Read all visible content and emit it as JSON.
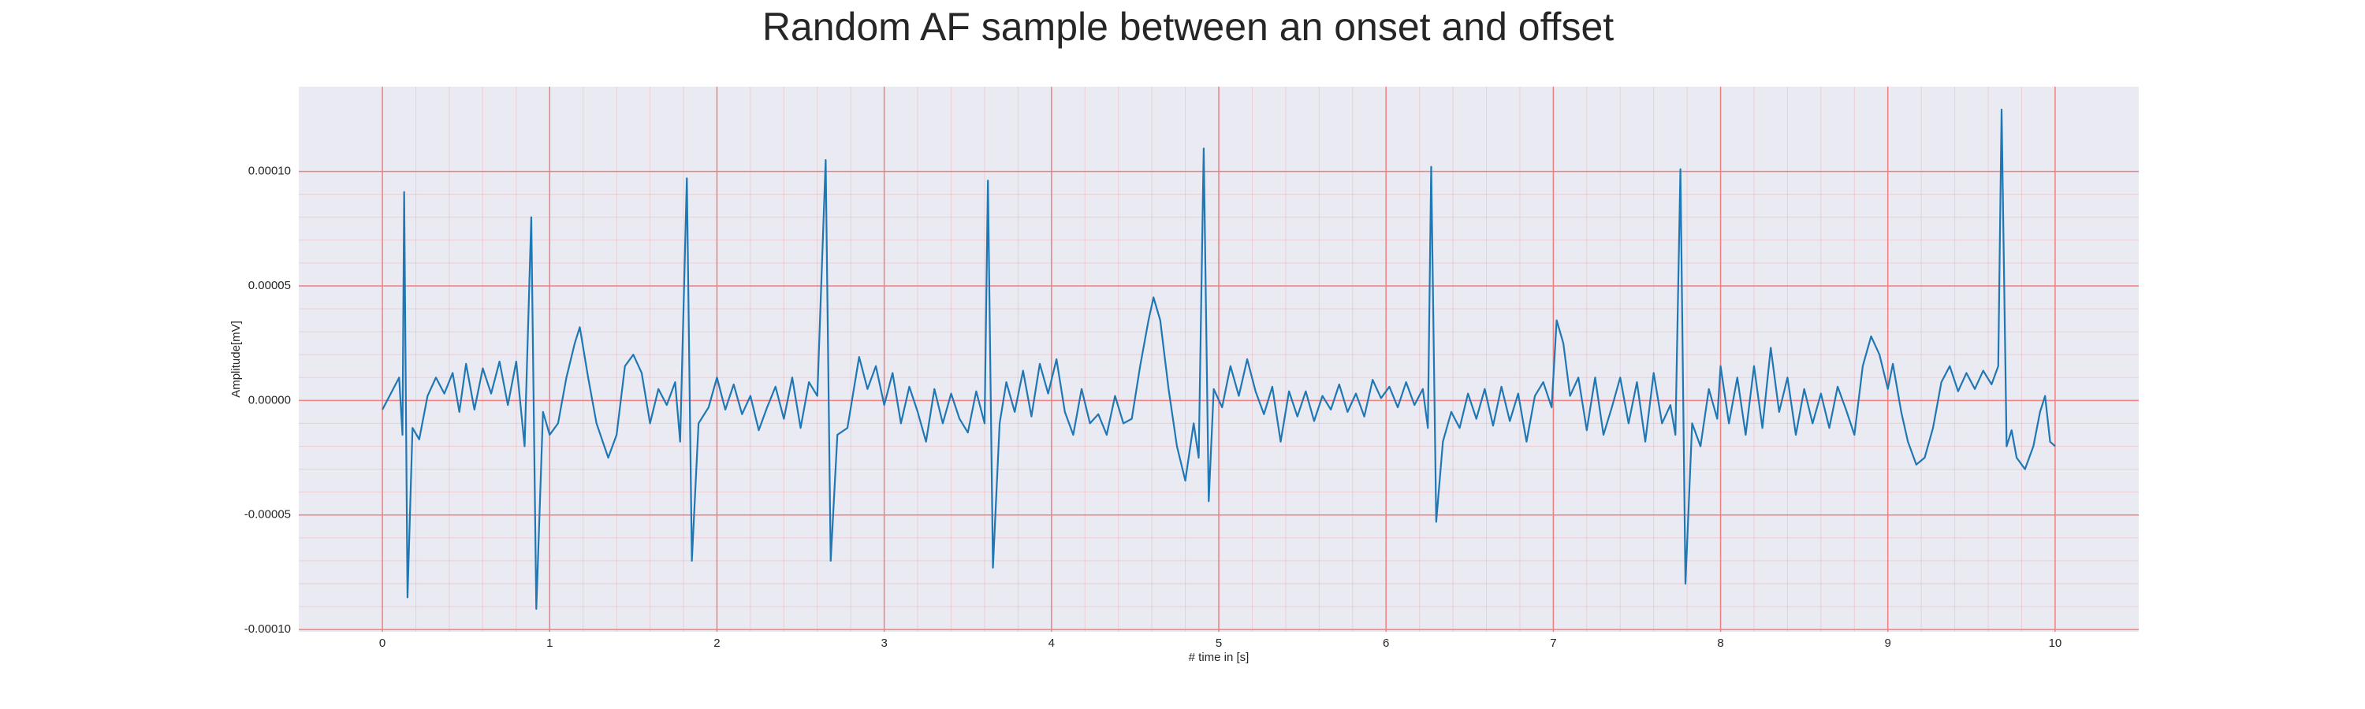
{
  "chart_data": {
    "type": "line",
    "title": "Random AF sample between an onset and offset",
    "xlabel": "# time in [s]",
    "ylabel": "Amplitude[mV]",
    "color": "#1f77b4",
    "grid": true,
    "minor_grid": true,
    "background": "#eaeaf2",
    "grid_color": "#f08080",
    "xlim": [
      -0.5,
      10.5
    ],
    "ylim": [
      -0.000101,
      0.000137
    ],
    "xticks": [
      0,
      1,
      2,
      3,
      4,
      5,
      6,
      7,
      8,
      9,
      10
    ],
    "yticks": [
      {
        "value": -0.0001,
        "label": "-0.00010"
      },
      {
        "value": -5e-05,
        "label": "-0.00005"
      },
      {
        "value": 0,
        "label": "0.00000"
      },
      {
        "value": 5e-05,
        "label": "0.00005"
      },
      {
        "value": 0.0001,
        "label": "0.00010"
      }
    ],
    "x": [
      0.0,
      0.05,
      0.1,
      0.12,
      0.13,
      0.15,
      0.18,
      0.22,
      0.27,
      0.32,
      0.37,
      0.42,
      0.46,
      0.5,
      0.55,
      0.6,
      0.65,
      0.7,
      0.75,
      0.8,
      0.85,
      0.89,
      0.92,
      0.96,
      1.0,
      1.05,
      1.1,
      1.15,
      1.18,
      1.23,
      1.28,
      1.35,
      1.4,
      1.45,
      1.5,
      1.55,
      1.6,
      1.65,
      1.7,
      1.75,
      1.78,
      1.82,
      1.85,
      1.89,
      1.95,
      2.0,
      2.05,
      2.1,
      2.15,
      2.2,
      2.25,
      2.3,
      2.35,
      2.4,
      2.45,
      2.5,
      2.55,
      2.6,
      2.65,
      2.68,
      2.72,
      2.78,
      2.85,
      2.9,
      2.95,
      3.0,
      3.05,
      3.1,
      3.15,
      3.2,
      3.25,
      3.3,
      3.35,
      3.4,
      3.45,
      3.5,
      3.55,
      3.6,
      3.62,
      3.65,
      3.69,
      3.73,
      3.78,
      3.83,
      3.88,
      3.93,
      3.98,
      4.03,
      4.08,
      4.13,
      4.18,
      4.23,
      4.28,
      4.33,
      4.38,
      4.43,
      4.48,
      4.53,
      4.58,
      4.61,
      4.65,
      4.7,
      4.75,
      4.8,
      4.85,
      4.88,
      4.91,
      4.94,
      4.97,
      5.02,
      5.07,
      5.12,
      5.17,
      5.22,
      5.27,
      5.32,
      5.37,
      5.42,
      5.47,
      5.52,
      5.57,
      5.62,
      5.67,
      5.72,
      5.77,
      5.82,
      5.87,
      5.92,
      5.97,
      6.02,
      6.07,
      6.12,
      6.17,
      6.22,
      6.25,
      6.27,
      6.3,
      6.34,
      6.39,
      6.44,
      6.49,
      6.54,
      6.59,
      6.64,
      6.69,
      6.74,
      6.79,
      6.84,
      6.89,
      6.94,
      6.99,
      7.02,
      7.06,
      7.1,
      7.15,
      7.2,
      7.25,
      7.3,
      7.35,
      7.4,
      7.45,
      7.5,
      7.55,
      7.6,
      7.65,
      7.7,
      7.73,
      7.76,
      7.79,
      7.83,
      7.88,
      7.93,
      7.98,
      8.0,
      8.05,
      8.1,
      8.15,
      8.2,
      8.25,
      8.3,
      8.35,
      8.4,
      8.45,
      8.5,
      8.55,
      8.6,
      8.65,
      8.7,
      8.75,
      8.8,
      8.85,
      8.9,
      8.95,
      9.0,
      9.03,
      9.08,
      9.12,
      9.17,
      9.22,
      9.27,
      9.32,
      9.37,
      9.42,
      9.47,
      9.52,
      9.57,
      9.62,
      9.66,
      9.68,
      9.71,
      9.74,
      9.77,
      9.82,
      9.87,
      9.91,
      9.94,
      9.97,
      10.0
    ],
    "values": [
      -4e-06,
      3e-06,
      1e-05,
      -1.5e-05,
      9.1e-05,
      -8.6e-05,
      -1.2e-05,
      -1.7e-05,
      2e-06,
      1e-05,
      3e-06,
      1.2e-05,
      -5e-06,
      1.6e-05,
      -4e-06,
      1.4e-05,
      3e-06,
      1.7e-05,
      -2e-06,
      1.7e-05,
      -2e-05,
      8e-05,
      -9.1e-05,
      -5e-06,
      -1.5e-05,
      -1e-05,
      1e-05,
      2.5e-05,
      3.2e-05,
      1e-05,
      -1e-05,
      -2.5e-05,
      -1.5e-05,
      1.5e-05,
      2e-05,
      1.2e-05,
      -1e-05,
      5e-06,
      -2e-06,
      8e-06,
      -1.8e-05,
      9.7e-05,
      -7e-05,
      -1e-05,
      -3e-06,
      1e-05,
      -4e-06,
      7e-06,
      -6e-06,
      2e-06,
      -1.3e-05,
      -3e-06,
      6e-06,
      -8e-06,
      1e-05,
      -1.2e-05,
      8e-06,
      2e-06,
      0.000105,
      -7e-05,
      -1.5e-05,
      -1.2e-05,
      1.9e-05,
      5e-06,
      1.5e-05,
      -2e-06,
      1.2e-05,
      -1e-05,
      6e-06,
      -5e-06,
      -1.8e-05,
      5e-06,
      -1e-05,
      3e-06,
      -8e-06,
      -1.4e-05,
      4e-06,
      -1e-05,
      9.6e-05,
      -7.3e-05,
      -1e-05,
      8e-06,
      -5e-06,
      1.3e-05,
      -7e-06,
      1.6e-05,
      3e-06,
      1.8e-05,
      -5e-06,
      -1.5e-05,
      5e-06,
      -1e-05,
      -6e-06,
      -1.5e-05,
      2e-06,
      -1e-05,
      -8e-06,
      1.5e-05,
      3.5e-05,
      4.5e-05,
      3.5e-05,
      5e-06,
      -2e-05,
      -3.5e-05,
      -1e-05,
      -2.5e-05,
      0.00011,
      -4.4e-05,
      5e-06,
      -3e-06,
      1.5e-05,
      2e-06,
      1.8e-05,
      4e-06,
      -6e-06,
      6e-06,
      -1.8e-05,
      4e-06,
      -7e-06,
      4e-06,
      -9e-06,
      2e-06,
      -4e-06,
      7e-06,
      -5e-06,
      3e-06,
      -7e-06,
      9e-06,
      1e-06,
      6e-06,
      -3e-06,
      8e-06,
      -2e-06,
      5e-06,
      -1.2e-05,
      0.000102,
      -5.3e-05,
      -1.8e-05,
      -5e-06,
      -1.2e-05,
      3e-06,
      -8e-06,
      5e-06,
      -1.1e-05,
      6e-06,
      -9e-06,
      3e-06,
      -1.8e-05,
      2e-06,
      8e-06,
      -3e-06,
      3.5e-05,
      2.5e-05,
      2e-06,
      1e-05,
      -1.3e-05,
      1e-05,
      -1.5e-05,
      -3e-06,
      1e-05,
      -1e-05,
      8e-06,
      -1.8e-05,
      1.2e-05,
      -1e-05,
      -2e-06,
      -1.5e-05,
      0.000101,
      -8e-05,
      -1e-05,
      -2e-05,
      5e-06,
      -8e-06,
      1.5e-05,
      -1e-05,
      1e-05,
      -1.5e-05,
      1.5e-05,
      -1.2e-05,
      2.3e-05,
      -5e-06,
      1e-05,
      -1.5e-05,
      5e-06,
      -1e-05,
      3e-06,
      -1.2e-05,
      6e-06,
      -4e-06,
      -1.5e-05,
      1.5e-05,
      2.8e-05,
      2e-05,
      5e-06,
      1.6e-05,
      -5e-06,
      -1.8e-05,
      -2.8e-05,
      -2.5e-05,
      -1.2e-05,
      8e-06,
      1.5e-05,
      4e-06,
      1.2e-05,
      5e-06,
      1.3e-05,
      7e-06,
      1.5e-05,
      0.000127,
      -2e-05,
      -1.3e-05,
      -2.5e-05,
      -3e-05,
      -2e-05,
      -5e-06,
      2e-06,
      -1.8e-05,
      -2e-05
    ]
  }
}
